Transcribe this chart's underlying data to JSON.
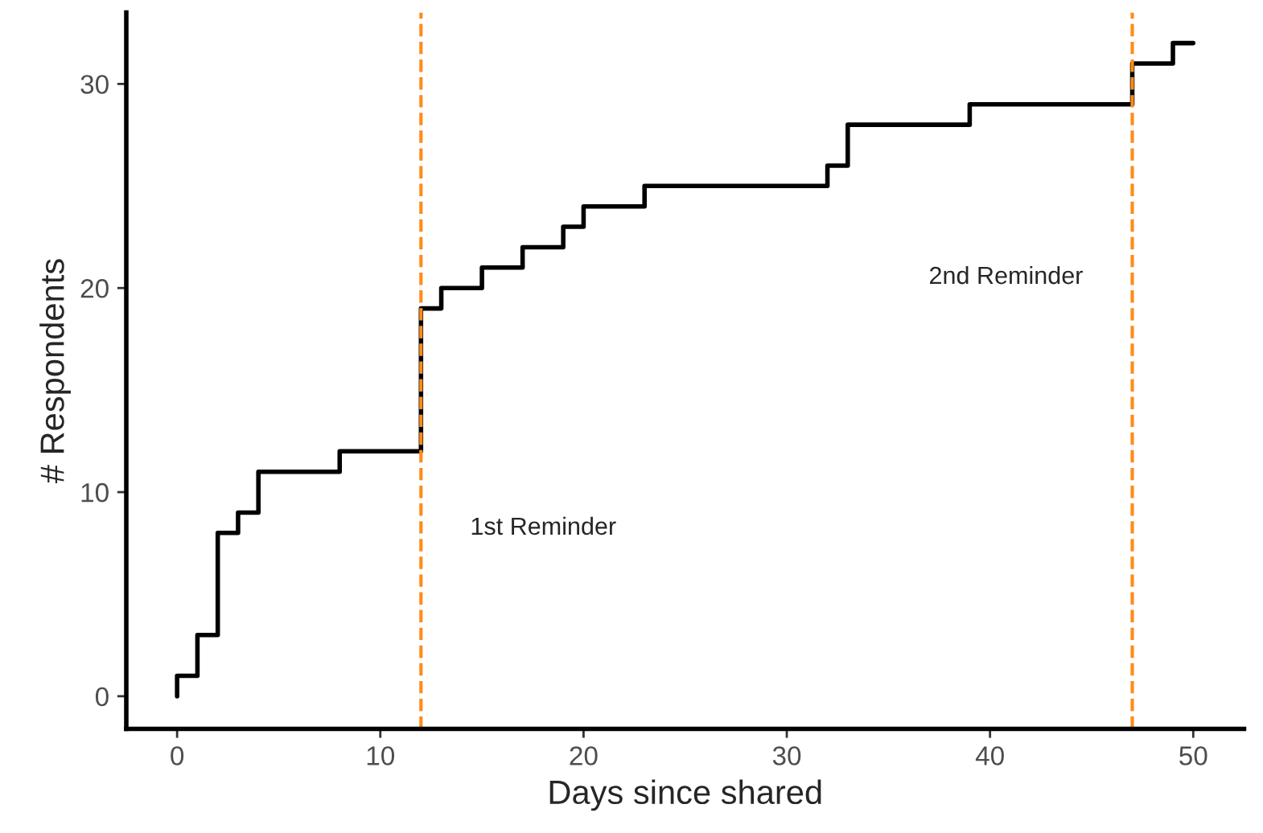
{
  "chart_data": {
    "type": "step",
    "xlabel": "Days since shared",
    "ylabel": "# Respondents",
    "x": [
      0,
      0,
      1,
      2,
      3,
      4,
      8,
      12,
      13,
      15,
      17,
      19,
      20,
      23,
      32,
      33,
      39,
      47,
      49,
      50
    ],
    "series": [
      {
        "color": "#000000",
        "values": [
          0,
          1,
          3,
          8,
          9,
          11,
          12,
          19,
          20,
          21,
          22,
          23,
          24,
          25,
          26,
          28,
          29,
          31,
          32,
          32
        ]
      }
    ],
    "xlim": [
      -2.5,
      52.5
    ],
    "ylim": [
      -1.6,
      33.5
    ],
    "xticks": [
      0,
      10,
      20,
      30,
      40,
      50
    ],
    "yticks": [
      0,
      10,
      20,
      30
    ],
    "ref_lines": [
      {
        "axis": "x",
        "value": 12,
        "label": "1st Reminder",
        "color": "#ff8c1a",
        "line_style": "dashed"
      },
      {
        "axis": "x",
        "value": 47,
        "label": "2nd Reminder",
        "color": "#ff8c1a",
        "line_style": "dashed"
      }
    ],
    "grid": false,
    "legend": false,
    "line_style": "solid",
    "marker": "none"
  }
}
